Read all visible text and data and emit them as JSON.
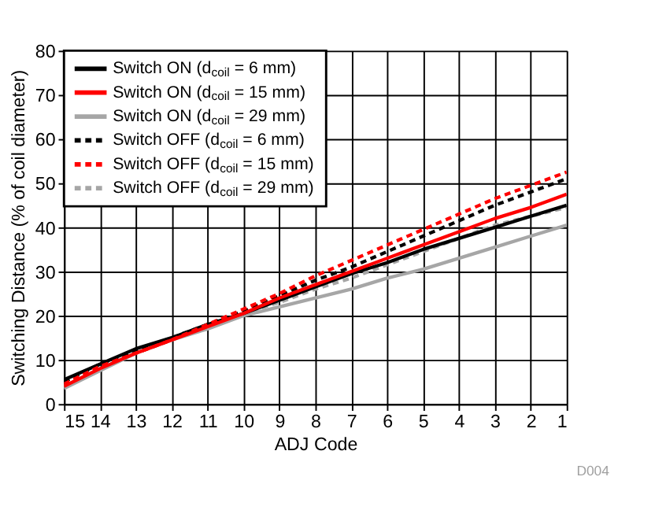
{
  "chart_data": {
    "type": "line",
    "xlabel": "ADJ Code",
    "ylabel": "Switching Distance (% of coil diameter)",
    "x": [
      15,
      14,
      13,
      12,
      11,
      10,
      9,
      8,
      7,
      6,
      5,
      4,
      3,
      2,
      1
    ],
    "xlim": [
      15,
      1
    ],
    "xticks": [
      15,
      14,
      13,
      12,
      11,
      10,
      9,
      8,
      7,
      6,
      5,
      4,
      3,
      2,
      1
    ],
    "ylim": [
      0,
      80
    ],
    "yticks": [
      0,
      10,
      20,
      30,
      40,
      50,
      60,
      70,
      80
    ],
    "grid": true,
    "legend": "top left",
    "line_style": "solid",
    "annotations": [
      "D004"
    ],
    "series": [
      {
        "name": "Switch ON (d$_{coil}$ = 6 mm)",
        "color": "#000000",
        "values": [
          5.5,
          9,
          12.5,
          15,
          18,
          20.5,
          23.5,
          26.5,
          29.5,
          32,
          35,
          37.5,
          40,
          42.5,
          45
        ]
      },
      {
        "name": "Switch ON (d$_{coil}$ = 15 mm)",
        "color": "#ff0000",
        "values": [
          4,
          8,
          11.5,
          14.5,
          17.5,
          20.5,
          24,
          27,
          30,
          33,
          36,
          39,
          42,
          44.5,
          47.5
        ]
      },
      {
        "name": "Switch ON (d$_{coil}$ = 29 mm)",
        "color": "#a6a6a6",
        "values": [
          3.5,
          7.5,
          11.5,
          14.5,
          17,
          20,
          22,
          24,
          26,
          28.5,
          30.5,
          33,
          35.5,
          38,
          40.5
        ]
      },
      {
        "name": "Switch OFF (d$_{coil}$ = 6 mm)",
        "color": "#000000",
        "line_style": "dashed",
        "values": [
          5,
          9,
          12,
          15,
          18,
          21,
          24.5,
          28,
          31,
          34.5,
          38,
          41.5,
          45,
          48,
          51
        ]
      },
      {
        "name": "Switch OFF (d$_{coil}$ = 15 mm)",
        "color": "#ff0000",
        "line_style": "dashed",
        "values": [
          4.5,
          8.5,
          11.5,
          14.5,
          18,
          21.5,
          25,
          29,
          32.5,
          36,
          39.5,
          43,
          46.5,
          49.5,
          52.5
        ]
      },
      {
        "name": "Switch OFF (d$_{coil}$ = 29 mm)",
        "color": "#a6a6a6",
        "line_style": "dashed",
        "values": [
          4,
          8,
          11.5,
          14.5,
          17.5,
          20.5,
          23,
          26,
          28.5,
          31.5,
          34.5,
          37.5,
          40.5,
          42.5,
          44.5
        ]
      }
    ]
  }
}
